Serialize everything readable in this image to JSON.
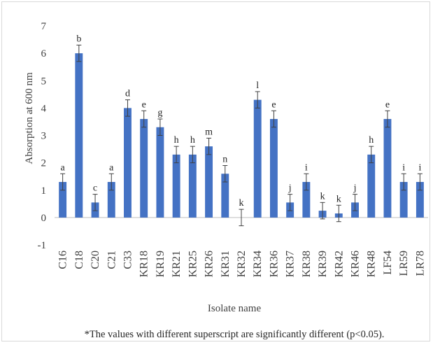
{
  "colors": {
    "bar": "#4472c4",
    "error": "#404040",
    "text": "#404040",
    "axis": "#bfbfbf"
  },
  "chart_data": {
    "type": "bar",
    "xlabel": "Isolate name",
    "ylabel": "Absorption at 600 nm",
    "footnote": "*The values with different superscript are significantly different (p<0.05).",
    "ylim": [
      -1,
      7
    ],
    "yticks": [
      "-1",
      "0",
      "1",
      "2",
      "3",
      "4",
      "5",
      "6",
      "7"
    ],
    "grid": false,
    "categories": [
      "C16",
      "C18",
      "C20",
      "C21",
      "C33",
      "KR18",
      "KR19",
      "KR21",
      "KR25",
      "KR26",
      "KR31",
      "KR32",
      "KR34",
      "KR36",
      "KR37",
      "KR38",
      "KR39",
      "KR42",
      "KR46",
      "KR48",
      "LF54",
      "LR59",
      "LR78"
    ],
    "values": [
      1.3,
      6.0,
      0.55,
      1.3,
      4.0,
      3.6,
      3.3,
      2.3,
      2.3,
      2.6,
      1.6,
      0.0,
      4.3,
      3.6,
      0.55,
      1.3,
      0.25,
      0.15,
      0.55,
      2.3,
      3.6,
      1.3,
      1.3
    ],
    "errors": [
      0.3,
      0.3,
      0.3,
      0.3,
      0.3,
      0.3,
      0.3,
      0.3,
      0.3,
      0.3,
      0.3,
      0.3,
      0.3,
      0.3,
      0.3,
      0.3,
      0.3,
      0.3,
      0.3,
      0.3,
      0.3,
      0.3,
      0.3
    ],
    "letters": [
      "a",
      "b",
      "c",
      "a",
      "d",
      "e",
      "g",
      "h",
      "h",
      "m",
      "n",
      "k",
      "l",
      "e",
      "j",
      "i",
      "k",
      "k",
      "j",
      "h",
      "e",
      "i",
      "i"
    ]
  }
}
